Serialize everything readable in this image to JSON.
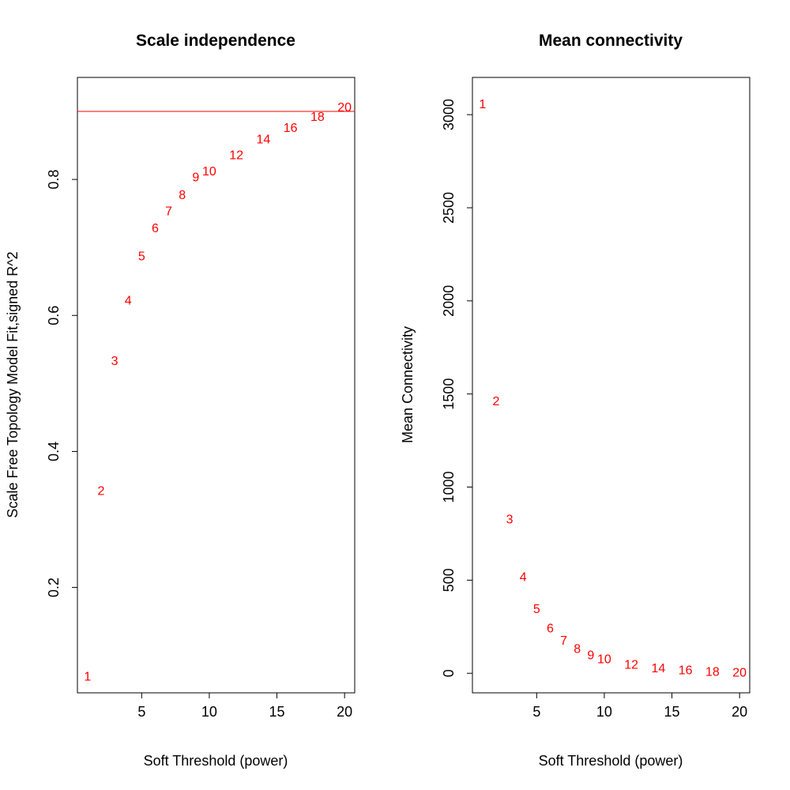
{
  "colors": {
    "points": "#ff0000",
    "cutoff_line": "#ff0000",
    "axes": "#000000"
  },
  "chart_data": [
    {
      "type": "scatter",
      "title": "Scale independence",
      "xlabel": "Soft Threshold (power)",
      "ylabel": "Scale Free Topology Model Fit,signed R^2",
      "xlim": [
        0.25,
        20.75
      ],
      "ylim": [
        0.045,
        0.95
      ],
      "xticks": [
        5,
        10,
        15,
        20
      ],
      "yticks": [
        0.2,
        0.4,
        0.6,
        0.8
      ],
      "cutoff": 0.9,
      "legend": "none",
      "grid": false,
      "points": [
        {
          "x": 1,
          "y": 0.07,
          "label": "1"
        },
        {
          "x": 2,
          "y": 0.343,
          "label": "2"
        },
        {
          "x": 3,
          "y": 0.534,
          "label": "3"
        },
        {
          "x": 4,
          "y": 0.623,
          "label": "4"
        },
        {
          "x": 5,
          "y": 0.688,
          "label": "5"
        },
        {
          "x": 6,
          "y": 0.729,
          "label": "6"
        },
        {
          "x": 7,
          "y": 0.754,
          "label": "7"
        },
        {
          "x": 8,
          "y": 0.778,
          "label": "8"
        },
        {
          "x": 9,
          "y": 0.804,
          "label": "9"
        },
        {
          "x": 10,
          "y": 0.813,
          "label": "10"
        },
        {
          "x": 12,
          "y": 0.837,
          "label": "12"
        },
        {
          "x": 14,
          "y": 0.86,
          "label": "14"
        },
        {
          "x": 16,
          "y": 0.877,
          "label": "16"
        },
        {
          "x": 18,
          "y": 0.893,
          "label": "18"
        },
        {
          "x": 20,
          "y": 0.907,
          "label": "20"
        }
      ]
    },
    {
      "type": "scatter",
      "title": "Mean connectivity",
      "xlabel": "Soft Threshold (power)",
      "ylabel": "Mean Connectivity",
      "xlim": [
        0.25,
        20.75
      ],
      "ylim": [
        -105,
        3200
      ],
      "xticks": [
        5,
        10,
        15,
        20
      ],
      "yticks": [
        0,
        500,
        1000,
        1500,
        2000,
        2500,
        3000
      ],
      "legend": "none",
      "grid": false,
      "points": [
        {
          "x": 1,
          "y": 3060,
          "label": "1"
        },
        {
          "x": 2,
          "y": 1465,
          "label": "2"
        },
        {
          "x": 3,
          "y": 830,
          "label": "3"
        },
        {
          "x": 4,
          "y": 520,
          "label": "4"
        },
        {
          "x": 5,
          "y": 350,
          "label": "5"
        },
        {
          "x": 6,
          "y": 245,
          "label": "6"
        },
        {
          "x": 7,
          "y": 180,
          "label": "7"
        },
        {
          "x": 8,
          "y": 135,
          "label": "8"
        },
        {
          "x": 9,
          "y": 100,
          "label": "9"
        },
        {
          "x": 10,
          "y": 80,
          "label": "10"
        },
        {
          "x": 12,
          "y": 50,
          "label": "12"
        },
        {
          "x": 14,
          "y": 30,
          "label": "14"
        },
        {
          "x": 16,
          "y": 20,
          "label": "16"
        },
        {
          "x": 18,
          "y": 12,
          "label": "18"
        },
        {
          "x": 20,
          "y": 8,
          "label": "20"
        }
      ]
    }
  ]
}
